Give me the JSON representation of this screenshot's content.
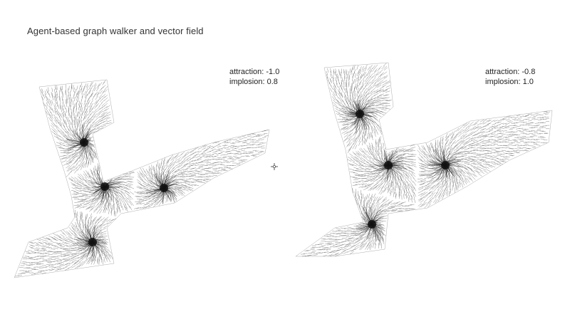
{
  "title": "Agent-based graph walker and vector field",
  "panels": [
    {
      "attraction": "attraction: -1.0",
      "implosion": "implosion: 0.8"
    },
    {
      "attraction": "attraction: -0.8",
      "implosion": "implosion: 1.0"
    }
  ],
  "colors": {
    "background": "#ffffff",
    "ink": "#111111",
    "text": "#222222"
  },
  "icons": {
    "cursor": "crosshair-cursor-icon"
  }
}
